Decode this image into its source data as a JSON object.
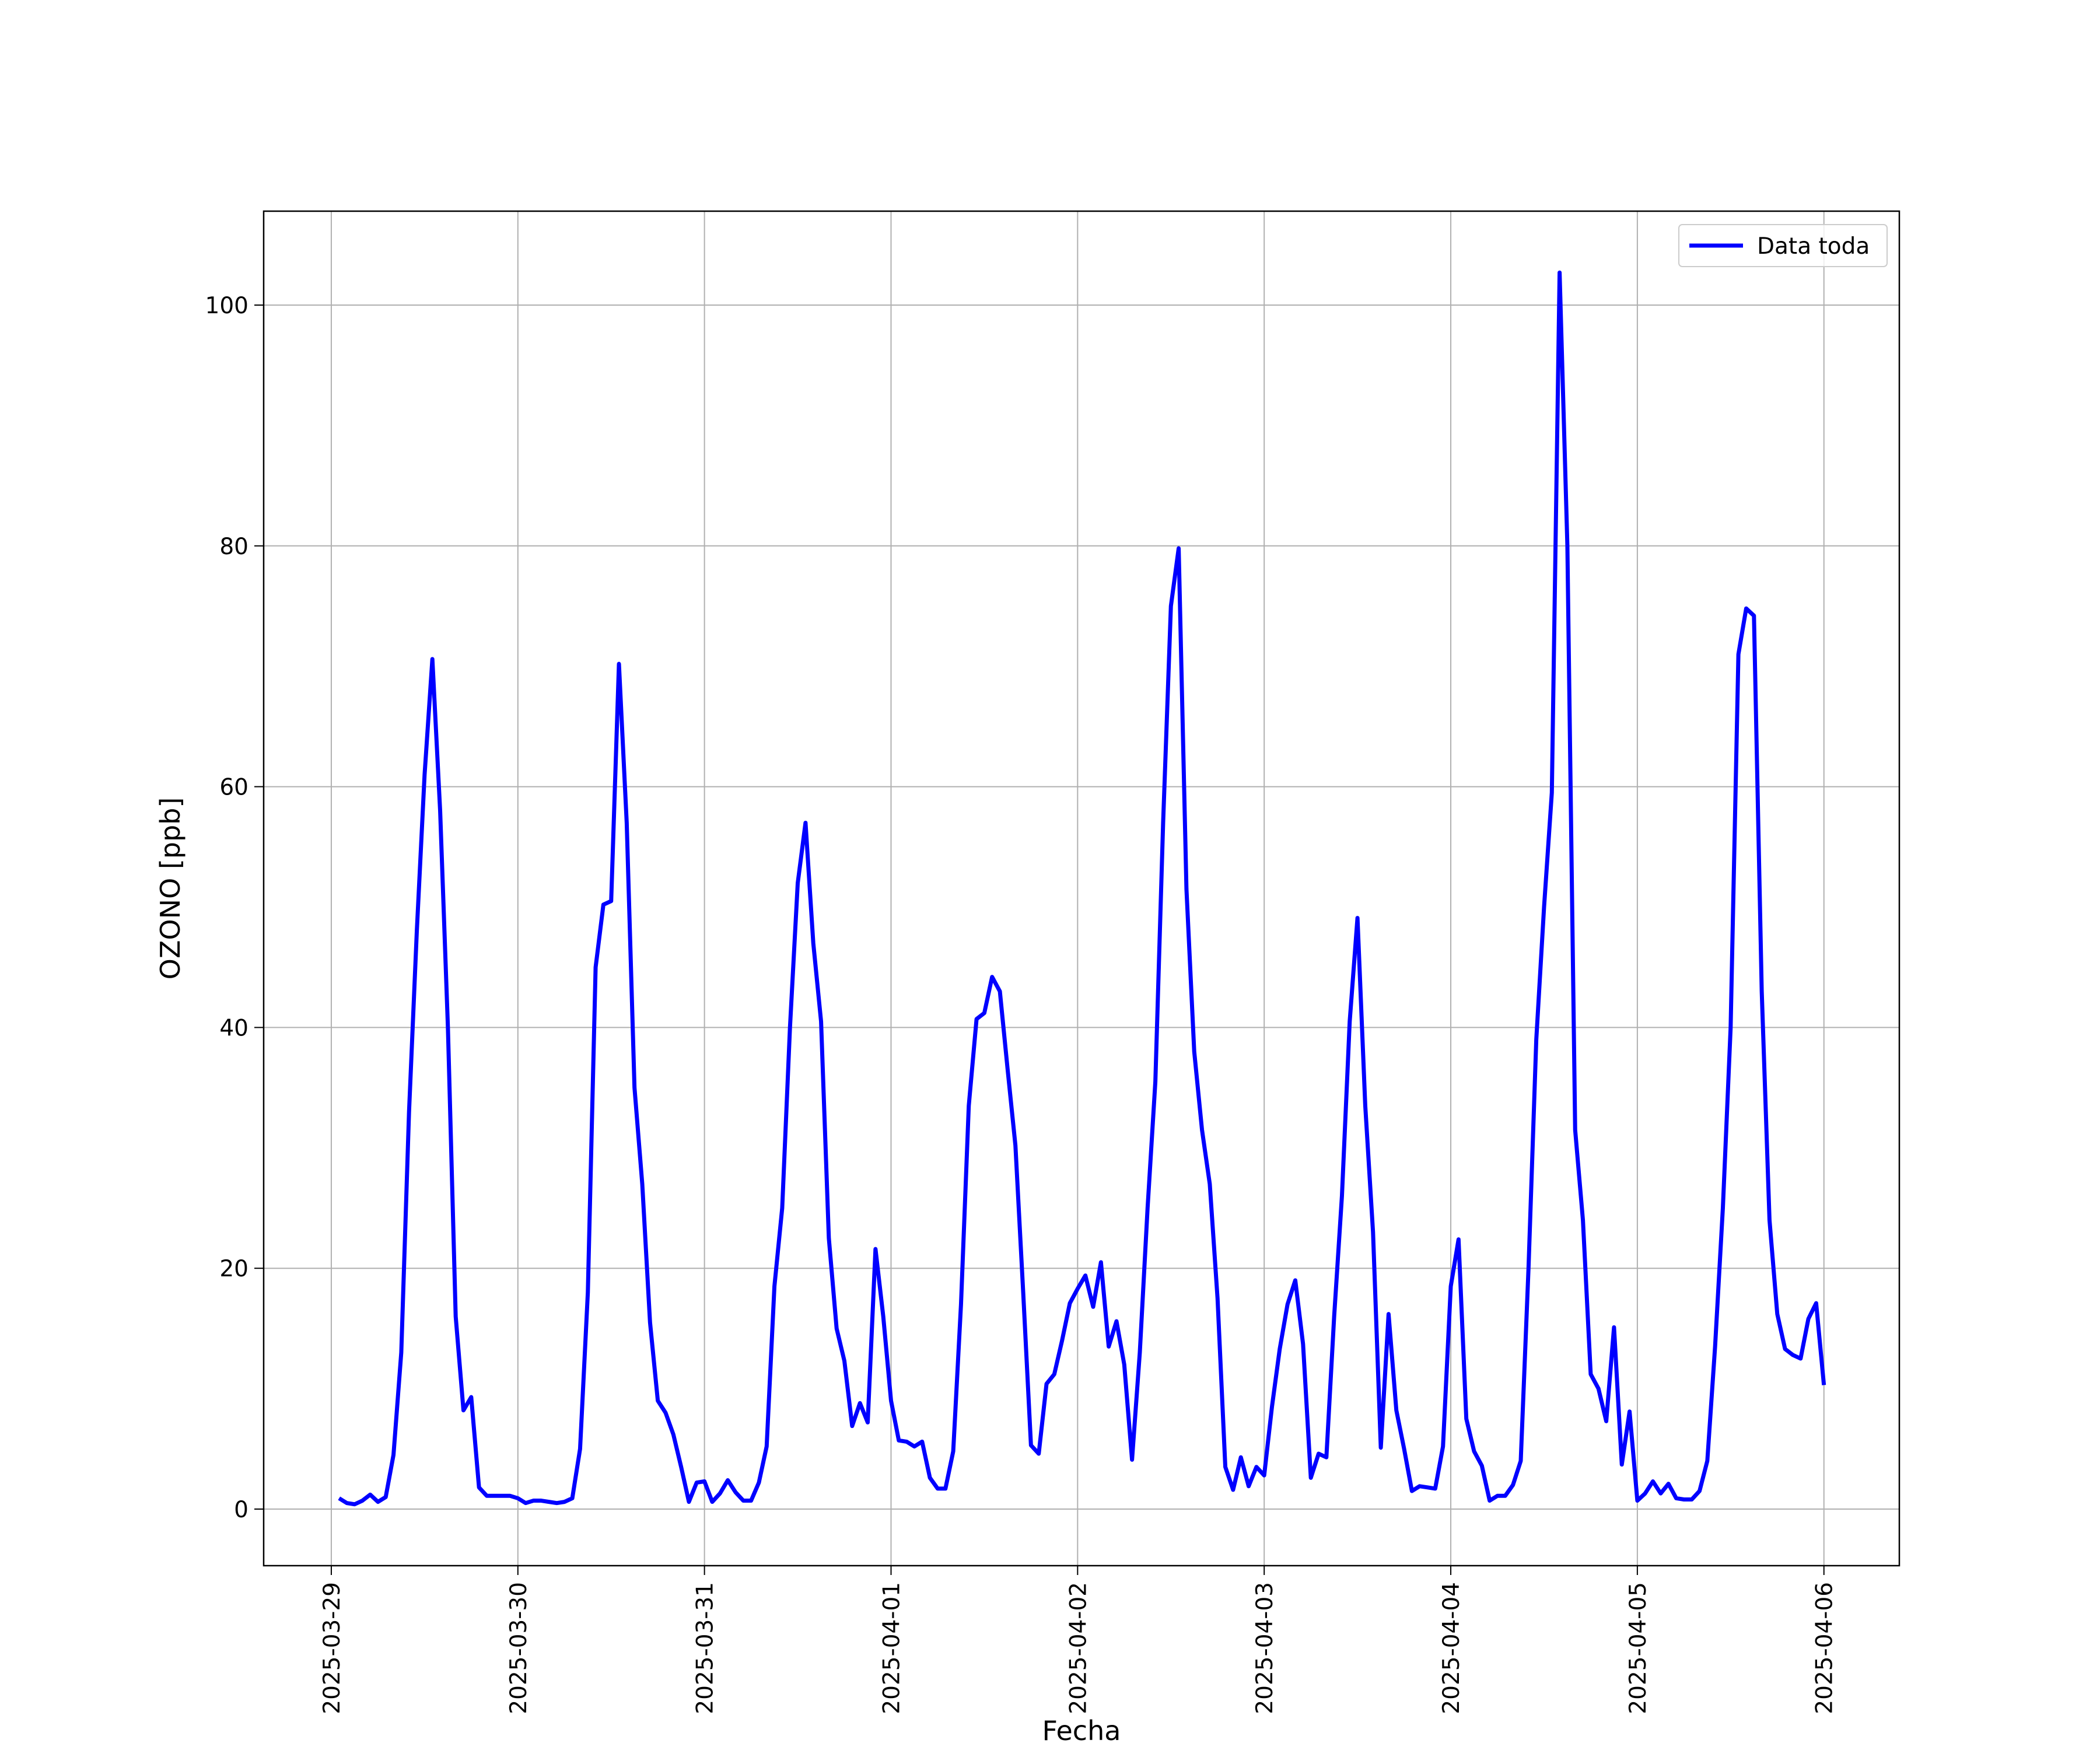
{
  "chart_data": {
    "type": "line",
    "x_label": "Fecha",
    "y_label": "OZONO [ppb]",
    "x": [
      1,
      2,
      3,
      4,
      5,
      6,
      7,
      8,
      9,
      10,
      11,
      12,
      13,
      14,
      15,
      16,
      17,
      18,
      19,
      20,
      21,
      22,
      23,
      24,
      25,
      26,
      27,
      28,
      29,
      30,
      31,
      32,
      33,
      34,
      35,
      36,
      37,
      38,
      39,
      40,
      41,
      42,
      43,
      44,
      45,
      46,
      47,
      48,
      49,
      50,
      51,
      52,
      53,
      54,
      55,
      56,
      57,
      58,
      59,
      60,
      61,
      62,
      63,
      64,
      65,
      66,
      67,
      68,
      69,
      70,
      71,
      72,
      73,
      74,
      75,
      76,
      77,
      78,
      79,
      80,
      81,
      82,
      83,
      84,
      85,
      86,
      87,
      88,
      89,
      90,
      91,
      92,
      93,
      94,
      95,
      96,
      97,
      98,
      99,
      100,
      101,
      102,
      103,
      104,
      105,
      106,
      107,
      108,
      109,
      110,
      111,
      112,
      113,
      114,
      115,
      116,
      117,
      118,
      119,
      120,
      121,
      122,
      123,
      124,
      125,
      126,
      127,
      128,
      129,
      130,
      131,
      132,
      133,
      134,
      135,
      136,
      137,
      138,
      139,
      140,
      141,
      142,
      143,
      144,
      145,
      146,
      147,
      148,
      149,
      150,
      151,
      152,
      153,
      154,
      155,
      156,
      157,
      158,
      159,
      160,
      161,
      162,
      163,
      164,
      165,
      166,
      167,
      168,
      169,
      170,
      171,
      172,
      173,
      174,
      175,
      176,
      177,
      178,
      179,
      180,
      181,
      182,
      183,
      184,
      185,
      186,
      187,
      188,
      189,
      190,
      191,
      192
    ],
    "series": [
      {
        "name": "Data toda",
        "color": "#0000ff",
        "values": [
          0.9,
          0.5,
          0.4,
          0.7,
          1.2,
          0.6,
          1.0,
          4.5,
          13,
          33,
          48,
          61,
          70.6,
          58,
          40,
          16,
          8.2,
          9.3,
          1.8,
          1.1,
          1.1,
          1.1,
          1.1,
          0.9,
          0.5,
          0.7,
          0.7,
          0.6,
          0.5,
          0.6,
          0.9,
          5,
          18,
          45,
          50.2,
          50.5,
          70.2,
          57,
          35,
          27,
          15.5,
          9,
          8,
          6.2,
          3.5,
          0.6,
          2.2,
          2.3,
          0.6,
          1.3,
          2.4,
          1.4,
          0.7,
          0.7,
          2.2,
          5.2,
          18.5,
          25,
          40,
          52,
          57,
          47,
          40.5,
          22.5,
          15,
          12.3,
          6.9,
          8.8,
          7.2,
          21.6,
          16,
          9,
          5.7,
          5.6,
          5.2,
          5.6,
          2.6,
          1.7,
          1.7,
          4.8,
          17,
          33.5,
          40.7,
          41.2,
          44.2,
          43,
          36.5,
          30.2,
          18,
          5.3,
          4.6,
          10.4,
          11.2,
          14,
          17.1,
          18.3,
          19.4,
          16.8,
          20.5,
          13.5,
          15.6,
          12,
          4.1,
          13,
          25,
          35.5,
          57,
          75,
          79.8,
          51.5,
          38,
          31.5,
          27,
          17.5,
          3.5,
          1.6,
          4.3,
          1.9,
          3.5,
          2.8,
          8.5,
          13.3,
          17,
          19,
          13.7,
          2.6,
          4.6,
          4.3,
          16,
          26,
          40.5,
          49.1,
          33.5,
          23,
          5.1,
          16.2,
          8.2,
          5,
          1.5,
          1.9,
          1.8,
          1.7,
          5.2,
          18.5,
          22.4,
          7.5,
          4.8,
          3.6,
          0.7,
          1.1,
          1.1,
          2,
          4,
          20,
          39,
          50,
          59.5,
          102.7,
          80,
          31.5,
          24,
          11.2,
          10,
          7.3,
          15.1,
          3.7,
          8.1,
          0.7,
          1.3,
          2.3,
          1.3,
          2.1,
          0.9,
          0.8,
          0.8,
          1.5,
          4,
          13.5,
          25,
          40,
          71,
          74.8,
          74.2,
          43,
          24,
          16.2,
          13.3,
          12.8,
          12.5,
          15.8,
          17.1,
          10.3
        ]
      }
    ],
    "xlim": [
      -8.7,
      201.7
    ],
    "xticks": [
      {
        "value": 0,
        "label": "2025-03-29"
      },
      {
        "value": 24,
        "label": "2025-03-30"
      },
      {
        "value": 48,
        "label": "2025-03-31"
      },
      {
        "value": 72,
        "label": "2025-04-01"
      },
      {
        "value": 96,
        "label": "2025-04-02"
      },
      {
        "value": 120,
        "label": "2025-04-03"
      },
      {
        "value": 144,
        "label": "2025-04-04"
      },
      {
        "value": 168,
        "label": "2025-04-05"
      },
      {
        "value": 192,
        "label": "2025-04-06"
      }
    ],
    "ylim": [
      -4.7,
      107.8
    ],
    "yticks": [
      0,
      20,
      40,
      60,
      80,
      100
    ],
    "grid": true,
    "legend": "upper right"
  }
}
